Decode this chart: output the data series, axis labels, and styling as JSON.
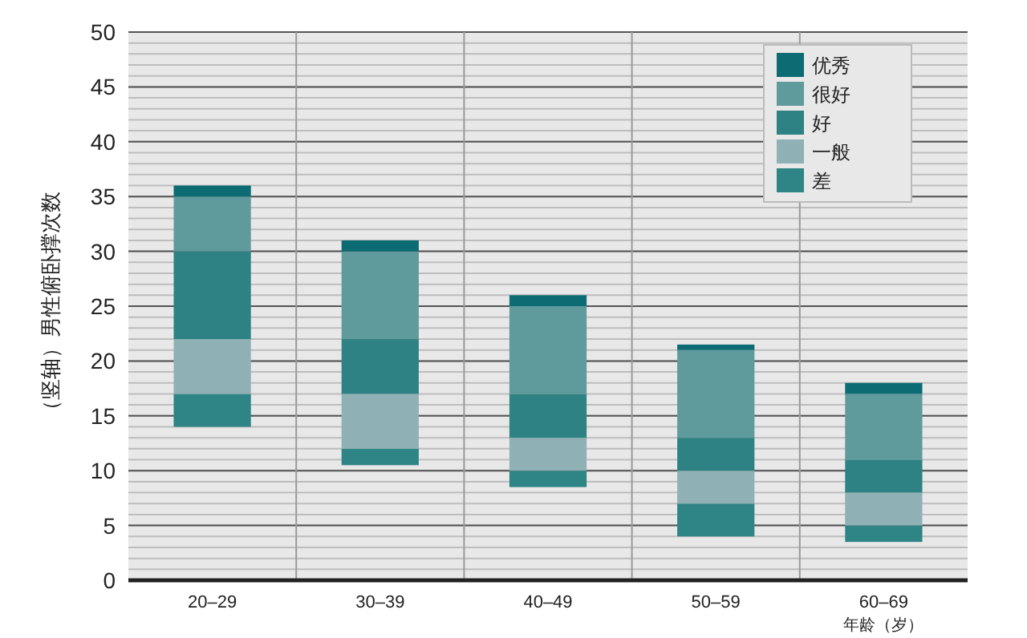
{
  "chart_data": {
    "type": "bar",
    "ylabel": "（竖轴）男性俯卧撑次数",
    "xlabel": "年龄（岁）",
    "categories": [
      "20–29",
      "30–39",
      "40–49",
      "50–59",
      "60–69"
    ],
    "series": [
      {
        "name": "差",
        "color": "#2f8485",
        "base": [
          14,
          10.5,
          8.5,
          4,
          3.5
        ],
        "values": [
          3,
          1.5,
          1.5,
          3,
          1.5
        ]
      },
      {
        "name": "一般",
        "color": "#8fb1b5",
        "base": [
          17,
          12,
          10,
          7,
          5
        ],
        "values": [
          5,
          5,
          3,
          3,
          3
        ]
      },
      {
        "name": "好",
        "color": "#2e8284",
        "base": [
          22,
          17,
          13,
          10,
          8
        ],
        "values": [
          8,
          5,
          4,
          3,
          3
        ]
      },
      {
        "name": "很好",
        "color": "#5f9a9c",
        "base": [
          30,
          22,
          17,
          13,
          11
        ],
        "values": [
          5,
          8,
          8,
          8,
          6
        ]
      },
      {
        "name": "优秀",
        "color": "#0d6b73",
        "base": [
          35,
          30,
          25,
          21,
          17
        ],
        "values": [
          1,
          1,
          1,
          0.5,
          1
        ]
      }
    ],
    "ylim": [
      0,
      50
    ],
    "yticks": [
      0,
      5,
      10,
      15,
      20,
      25,
      30,
      35,
      40,
      45,
      50
    ],
    "grid": "y",
    "legend": "top right"
  }
}
